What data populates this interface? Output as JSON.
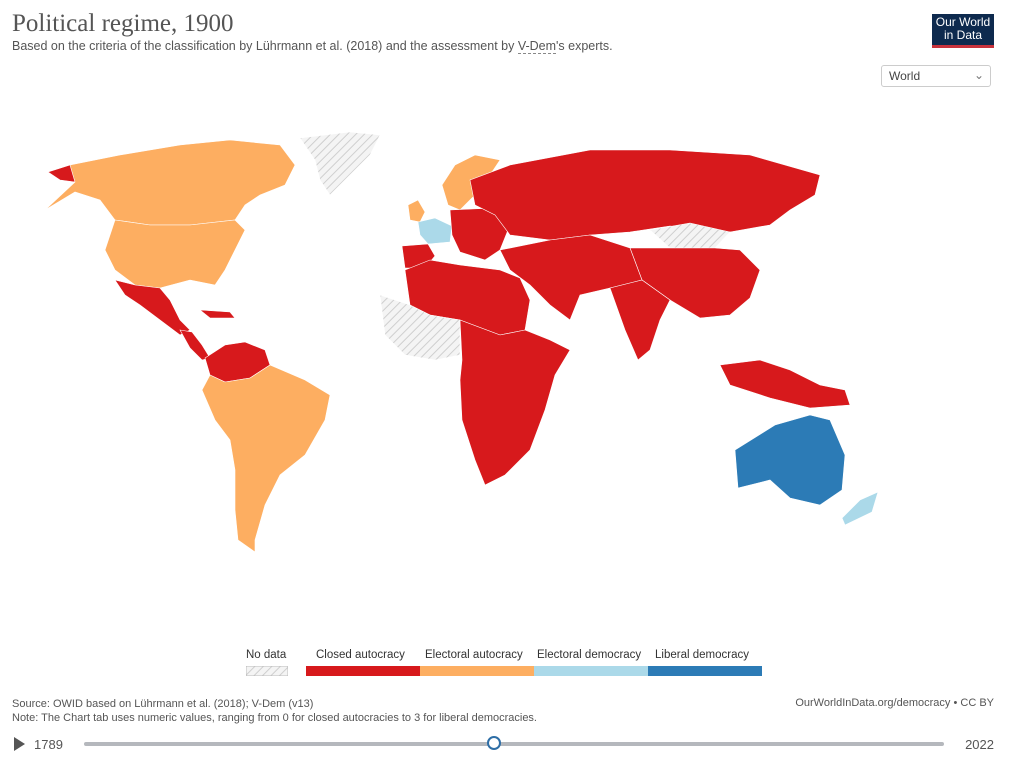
{
  "header": {
    "title": "Political regime, 1900",
    "subtitle_before": "Based on the criteria of the classification by Lührmann et al. (2018) and the assessment by ",
    "subtitle_link": "V-Dem",
    "subtitle_after": "'s experts.",
    "logo_line1": "Our World",
    "logo_line2": "in Data"
  },
  "region_select": {
    "value": "World"
  },
  "legend": {
    "no_data": "No data",
    "items": [
      {
        "label": "Closed autocracy",
        "color": "#d7191c"
      },
      {
        "label": "Electoral autocracy",
        "color": "#fdae61"
      },
      {
        "label": "Electoral democracy",
        "color": "#abd9e9"
      },
      {
        "label": "Liberal democracy",
        "color": "#2c7bb6"
      }
    ]
  },
  "map": {
    "regions": {
      "canada": "electoral_autocracy",
      "usa": "electoral_autocracy",
      "alaska": "closed_autocracy",
      "greenland": "no_data",
      "mexico": "closed_autocracy",
      "central_america": "closed_autocracy",
      "cuba": "closed_autocracy",
      "venezuela_colombia": "closed_autocracy",
      "south_america": "electoral_autocracy",
      "france": "electoral_democracy",
      "uk": "electoral_autocracy",
      "scandinavia": "electoral_autocracy",
      "iberia": "closed_autocracy",
      "central_europe": "closed_autocracy",
      "russia": "closed_autocracy",
      "mongolia": "no_data",
      "china": "closed_autocracy",
      "india": "closed_autocracy",
      "middle_east": "closed_autocracy",
      "north_africa": "closed_autocracy",
      "sahara": "no_data",
      "south_africa": "closed_autocracy",
      "indonesia": "closed_autocracy",
      "australia": "liberal_democracy",
      "new_zealand": "electoral_democracy"
    }
  },
  "footer": {
    "source": "Source: OWID based on Lührmann et al. (2018); V-Dem (v13)",
    "note": "Note: The Chart tab uses numeric values, ranging from 0 for closed autocracies to 3 for liberal democracies.",
    "url": "OurWorldInData.org/democracy • CC BY"
  },
  "timeline": {
    "start": "1789",
    "end": "2022",
    "current": "1900"
  }
}
